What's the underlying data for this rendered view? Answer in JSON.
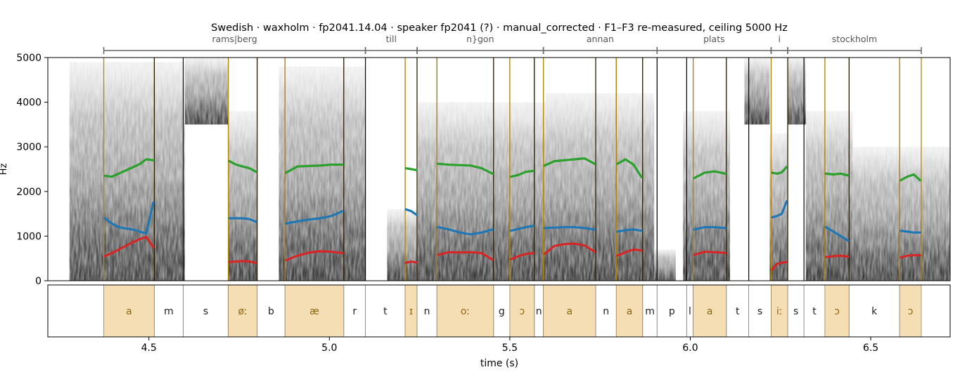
{
  "chart_data": {
    "type": "line",
    "title": "Swedish · waxholm · fp2041.14.04 · speaker fp2041 (?) · manual_corrected · F1–F3 re-measured, ceiling 5000 Hz",
    "xlabel": "time (s)",
    "ylabel": "Hz",
    "xlim": [
      4.22,
      6.72
    ],
    "ylim": [
      0,
      5000
    ],
    "x_ticks": [
      4.5,
      5.0,
      5.5,
      6.0,
      6.5
    ],
    "x_tick_labels": [
      "4.5",
      "5.0",
      "5.5",
      "6.0",
      "6.5"
    ],
    "y_ticks": [
      0,
      1000,
      2000,
      3000,
      4000,
      5000
    ],
    "y_tick_labels": [
      "0",
      "1000",
      "2000",
      "3000",
      "4000",
      "5000"
    ],
    "colors": {
      "F1": "#d62728",
      "F2": "#1f77b4",
      "F3": "#2ca02c",
      "vowel_fill": "#f5deb3",
      "vowel_line": "#b8860b",
      "vowel_text": "#8b6914",
      "boundary": "#000000"
    },
    "words": [
      {
        "label": "rams|berg",
        "start": 4.375,
        "end": 5.1
      },
      {
        "label": "till",
        "start": 5.1,
        "end": 5.243
      },
      {
        "label": "n}gon",
        "start": 5.243,
        "end": 5.593
      },
      {
        "label": "annan",
        "start": 5.593,
        "end": 5.908
      },
      {
        "label": "plats",
        "start": 5.908,
        "end": 6.224
      },
      {
        "label": "i",
        "start": 6.224,
        "end": 6.27
      },
      {
        "label": "stockholm",
        "start": 6.27,
        "end": 6.64
      }
    ],
    "phones": [
      {
        "label": "a",
        "start": 4.375,
        "end": 4.515,
        "vowel": true
      },
      {
        "label": "m",
        "start": 4.515,
        "end": 4.595,
        "vowel": false
      },
      {
        "label": "s",
        "start": 4.595,
        "end": 4.72,
        "vowel": false
      },
      {
        "label": "øː",
        "start": 4.72,
        "end": 4.8,
        "vowel": true
      },
      {
        "label": "b",
        "start": 4.8,
        "end": 4.877,
        "vowel": false
      },
      {
        "label": "æ",
        "start": 4.877,
        "end": 5.04,
        "vowel": true
      },
      {
        "label": "r",
        "start": 5.04,
        "end": 5.1,
        "vowel": false
      },
      {
        "label": "t",
        "start": 5.1,
        "end": 5.21,
        "vowel": false
      },
      {
        "label": "ɪ",
        "start": 5.21,
        "end": 5.243,
        "vowel": true
      },
      {
        "label": "n",
        "start": 5.243,
        "end": 5.298,
        "vowel": false
      },
      {
        "label": "oː",
        "start": 5.298,
        "end": 5.455,
        "vowel": true
      },
      {
        "label": "g",
        "start": 5.455,
        "end": 5.5,
        "vowel": false
      },
      {
        "label": "ɔ",
        "start": 5.5,
        "end": 5.568,
        "vowel": true
      },
      {
        "label": "n",
        "start": 5.568,
        "end": 5.593,
        "vowel": false
      },
      {
        "label": "a",
        "start": 5.593,
        "end": 5.738,
        "vowel": true
      },
      {
        "label": "n",
        "start": 5.738,
        "end": 5.795,
        "vowel": false
      },
      {
        "label": "a",
        "start": 5.795,
        "end": 5.868,
        "vowel": true
      },
      {
        "label": "m",
        "start": 5.868,
        "end": 5.908,
        "vowel": false
      },
      {
        "label": "p",
        "start": 5.908,
        "end": 5.99,
        "vowel": false
      },
      {
        "label": "l",
        "start": 5.99,
        "end": 6.008,
        "vowel": false
      },
      {
        "label": "a",
        "start": 6.008,
        "end": 6.1,
        "vowel": true
      },
      {
        "label": "t",
        "start": 6.1,
        "end": 6.162,
        "vowel": false
      },
      {
        "label": "s",
        "start": 6.162,
        "end": 6.224,
        "vowel": false
      },
      {
        "label": "iː",
        "start": 6.224,
        "end": 6.27,
        "vowel": true
      },
      {
        "label": "s",
        "start": 6.27,
        "end": 6.315,
        "vowel": false
      },
      {
        "label": "t",
        "start": 6.315,
        "end": 6.373,
        "vowel": false
      },
      {
        "label": "ɔ",
        "start": 6.373,
        "end": 6.44,
        "vowel": true
      },
      {
        "label": "k",
        "start": 6.44,
        "end": 6.58,
        "vowel": false
      },
      {
        "label": "ɔ",
        "start": 6.58,
        "end": 6.64,
        "vowel": true
      }
    ],
    "formant_tracks": [
      {
        "start": 4.378,
        "end": 4.512,
        "F1": [
          550,
          620,
          700,
          780,
          860,
          930,
          980,
          750
        ],
        "F2": [
          1400,
          1280,
          1200,
          1170,
          1150,
          1100,
          1060,
          1750
        ],
        "F3": [
          2350,
          2330,
          2400,
          2470,
          2540,
          2610,
          2720,
          2700
        ]
      },
      {
        "start": 4.723,
        "end": 4.797,
        "F1": [
          420,
          430,
          440,
          430,
          400
        ],
        "F2": [
          1400,
          1400,
          1400,
          1380,
          1320
        ],
        "F3": [
          2680,
          2600,
          2560,
          2520,
          2440
        ]
      },
      {
        "start": 4.88,
        "end": 5.037,
        "F1": [
          460,
          560,
          630,
          660,
          650,
          620
        ],
        "F2": [
          1280,
          1330,
          1370,
          1400,
          1450,
          1560
        ],
        "F3": [
          2420,
          2560,
          2570,
          2580,
          2600,
          2600
        ]
      },
      {
        "start": 5.212,
        "end": 5.241,
        "F1": [
          400,
          430,
          410
        ],
        "F2": [
          1600,
          1560,
          1480
        ],
        "F3": [
          2520,
          2500,
          2480
        ]
      },
      {
        "start": 5.301,
        "end": 5.452,
        "F1": [
          580,
          640,
          630,
          640,
          620,
          470
        ],
        "F2": [
          1200,
          1150,
          1080,
          1040,
          1080,
          1150
        ],
        "F3": [
          2620,
          2600,
          2590,
          2580,
          2520,
          2400
        ]
      },
      {
        "start": 5.503,
        "end": 5.565,
        "F1": [
          480,
          550,
          600,
          620
        ],
        "F2": [
          1120,
          1160,
          1200,
          1230
        ],
        "F3": [
          2330,
          2370,
          2440,
          2460
        ]
      },
      {
        "start": 5.596,
        "end": 5.735,
        "F1": [
          600,
          780,
          820,
          830,
          790,
          650
        ],
        "F2": [
          1180,
          1190,
          1200,
          1200,
          1180,
          1150
        ],
        "F3": [
          2580,
          2680,
          2700,
          2720,
          2740,
          2620
        ]
      },
      {
        "start": 5.798,
        "end": 5.865,
        "F1": [
          560,
          640,
          700,
          680
        ],
        "F2": [
          1100,
          1130,
          1150,
          1120
        ],
        "F3": [
          2620,
          2720,
          2600,
          2320
        ]
      },
      {
        "start": 6.011,
        "end": 6.097,
        "F1": [
          580,
          650,
          640,
          620
        ],
        "F2": [
          1150,
          1200,
          1200,
          1180
        ],
        "F3": [
          2300,
          2420,
          2450,
          2400
        ]
      },
      {
        "start": 6.227,
        "end": 6.267,
        "F1": [
          250,
          380,
          400,
          420
        ],
        "F2": [
          1420,
          1450,
          1500,
          1780
        ],
        "F3": [
          2420,
          2400,
          2430,
          2550
        ]
      },
      {
        "start": 6.376,
        "end": 6.437,
        "F1": [
          530,
          550,
          560,
          540
        ],
        "F2": [
          1200,
          1100,
          1000,
          900
        ],
        "F3": [
          2400,
          2380,
          2400,
          2360
        ]
      },
      {
        "start": 6.583,
        "end": 6.637,
        "F1": [
          520,
          560,
          570,
          570
        ],
        "F2": [
          1120,
          1100,
          1080,
          1080
        ],
        "F3": [
          2250,
          2330,
          2380,
          2250
        ]
      }
    ],
    "spectrogram_bands": [
      {
        "start": 4.28,
        "end": 4.6,
        "low": 0,
        "high": 4900
      },
      {
        "start": 4.6,
        "end": 4.72,
        "low": 3500,
        "high": 5000
      },
      {
        "start": 4.72,
        "end": 4.8,
        "low": 0,
        "high": 3800
      },
      {
        "start": 4.86,
        "end": 5.1,
        "low": 0,
        "high": 4800
      },
      {
        "start": 5.16,
        "end": 5.245,
        "low": 0,
        "high": 1600
      },
      {
        "start": 5.245,
        "end": 5.6,
        "low": 0,
        "high": 4000
      },
      {
        "start": 5.6,
        "end": 5.9,
        "low": 0,
        "high": 4200
      },
      {
        "start": 5.9,
        "end": 5.96,
        "low": 0,
        "high": 700
      },
      {
        "start": 5.98,
        "end": 6.11,
        "low": 0,
        "high": 3800
      },
      {
        "start": 6.15,
        "end": 6.22,
        "low": 3500,
        "high": 5000
      },
      {
        "start": 6.22,
        "end": 6.27,
        "low": 0,
        "high": 3300
      },
      {
        "start": 6.27,
        "end": 6.32,
        "low": 3500,
        "high": 5000
      },
      {
        "start": 6.32,
        "end": 6.45,
        "low": 0,
        "high": 3800
      },
      {
        "start": 6.45,
        "end": 6.72,
        "low": 0,
        "high": 3000
      }
    ]
  }
}
